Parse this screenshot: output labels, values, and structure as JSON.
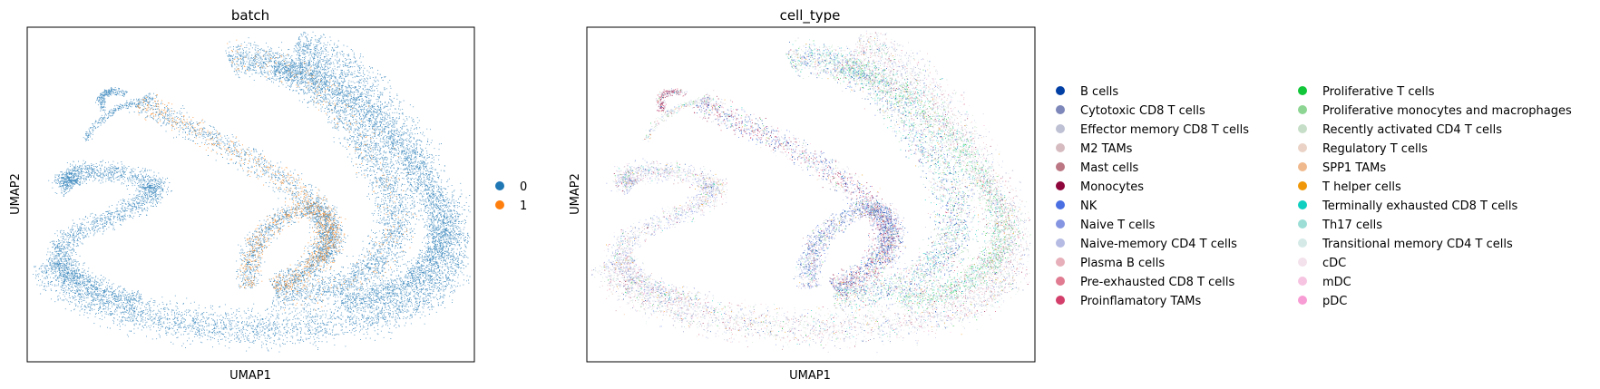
{
  "chart_data": [
    {
      "type": "scatter",
      "title": "batch",
      "xlabel": "UMAP1",
      "ylabel": "UMAP2",
      "legend_position": "right",
      "grid": false,
      "series": [
        {
          "name": "0",
          "color": "#1f77b4"
        },
        {
          "name": "1",
          "color": "#ff7f0e"
        }
      ]
    },
    {
      "type": "scatter",
      "title": "cell_type",
      "xlabel": "UMAP1",
      "ylabel": "UMAP2",
      "legend_position": "right",
      "legend_columns": 2,
      "grid": false,
      "series": [
        {
          "name": "B cells",
          "color": "#023fa5"
        },
        {
          "name": "Cytotoxic CD8 T cells",
          "color": "#7d87b9"
        },
        {
          "name": "Effector memory CD8 T cells",
          "color": "#bec1d4"
        },
        {
          "name": "M2 TAMs",
          "color": "#d6bcc0"
        },
        {
          "name": "Mast cells",
          "color": "#bb7784"
        },
        {
          "name": "Monocytes",
          "color": "#8e063b"
        },
        {
          "name": "NK",
          "color": "#4a6fe3"
        },
        {
          "name": "Naive T cells",
          "color": "#8595e1"
        },
        {
          "name": "Naive-memory CD4 T cells",
          "color": "#b5bbe3"
        },
        {
          "name": "Plasma B cells",
          "color": "#e6afb9"
        },
        {
          "name": "Pre-exhausted CD8 T cells",
          "color": "#e07b91"
        },
        {
          "name": "Proinflamatory TAMs",
          "color": "#d33f6a"
        },
        {
          "name": "Proliferative T cells",
          "color": "#11c638"
        },
        {
          "name": "Proliferative monocytes and macrophages",
          "color": "#8dd593"
        },
        {
          "name": "Recently activated CD4 T cells",
          "color": "#c6dec7"
        },
        {
          "name": "Regulatory T cells",
          "color": "#ead3c6"
        },
        {
          "name": "SPP1 TAMs",
          "color": "#f0b98d"
        },
        {
          "name": "T helper cells",
          "color": "#ef9708"
        },
        {
          "name": "Terminally exhausted CD8 T cells",
          "color": "#0fcfc0"
        },
        {
          "name": "Th17 cells",
          "color": "#9cded6"
        },
        {
          "name": "Transitional memory CD4 T cells",
          "color": "#d5eae7"
        },
        {
          "name": "cDC",
          "color": "#f3e1eb"
        },
        {
          "name": "mDC",
          "color": "#f6c4e1"
        },
        {
          "name": "pDC",
          "color": "#f79cd4"
        }
      ]
    }
  ]
}
